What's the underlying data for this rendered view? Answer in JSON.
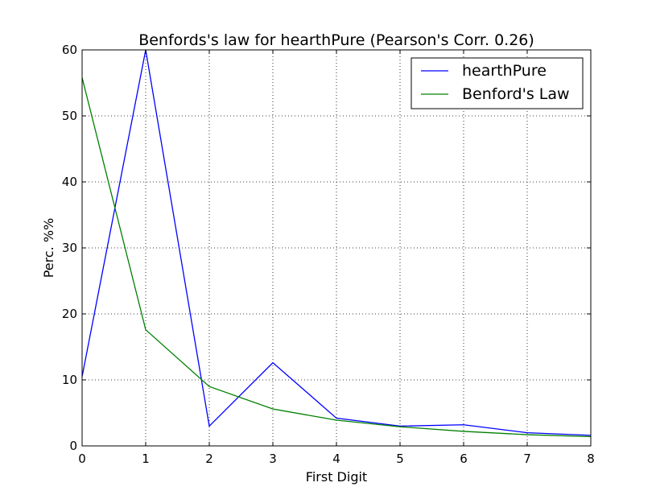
{
  "chart_data": {
    "type": "line",
    "title": "Benfords's law for hearthPure (Pearson's Corr. 0.26)",
    "xlabel": "First Digit",
    "ylabel": "Perc. %%",
    "xlim": [
      0,
      8
    ],
    "ylim": [
      0,
      60
    ],
    "xticks": [
      "0",
      "1",
      "2",
      "3",
      "4",
      "5",
      "6",
      "7",
      "8"
    ],
    "yticks": [
      "0",
      "10",
      "20",
      "30",
      "40",
      "50",
      "60"
    ],
    "grid": true,
    "legend_position": "top-right",
    "x": [
      0,
      1,
      2,
      3,
      4,
      5,
      6,
      7,
      8
    ],
    "series": [
      {
        "name": "hearthPure",
        "color": "#0000ff",
        "values": [
          10.5,
          60.0,
          3.0,
          12.6,
          4.2,
          3.0,
          3.2,
          2.0,
          1.6
        ]
      },
      {
        "name": "Benford's Law",
        "color": "#008000",
        "values": [
          55.8,
          17.6,
          9.0,
          5.6,
          3.9,
          2.9,
          2.2,
          1.7,
          1.4
        ]
      }
    ]
  }
}
